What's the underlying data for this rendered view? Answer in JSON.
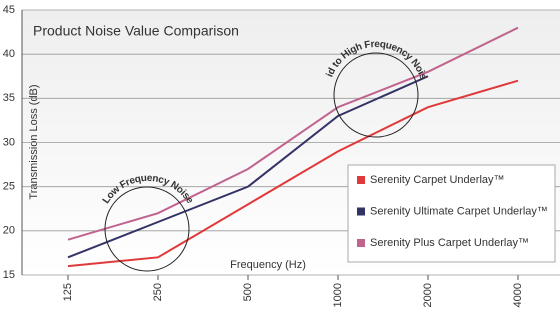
{
  "chart_data": {
    "type": "line",
    "title": "Product Noise Value Comparison",
    "x_label": "Frequency (Hz)",
    "y_label": "Transmission Loss (dB)",
    "categories": [
      "125",
      "250",
      "500",
      "1000",
      "2000",
      "4000"
    ],
    "series": [
      {
        "name": "Serenity Carpet Underlay™",
        "color": "#e0393a",
        "values": [
          16,
          17,
          23,
          29,
          34,
          37
        ]
      },
      {
        "name": "Serenity Ultimate Carpet Underlay™",
        "color": "#333366",
        "values": [
          17,
          21,
          25,
          33,
          37.5,
          null
        ]
      },
      {
        "name": "Serenity Plus Carpet Underlay™",
        "color": "#c0638e",
        "values": [
          19,
          22,
          27,
          34,
          38,
          43
        ]
      }
    ],
    "ylim": [
      15,
      45
    ],
    "yticks": [
      15,
      20,
      25,
      30,
      35,
      40,
      45
    ],
    "grid": true,
    "annotations": [
      "Low Frequency Noise",
      "Mid to High Frequency Noise"
    ]
  }
}
